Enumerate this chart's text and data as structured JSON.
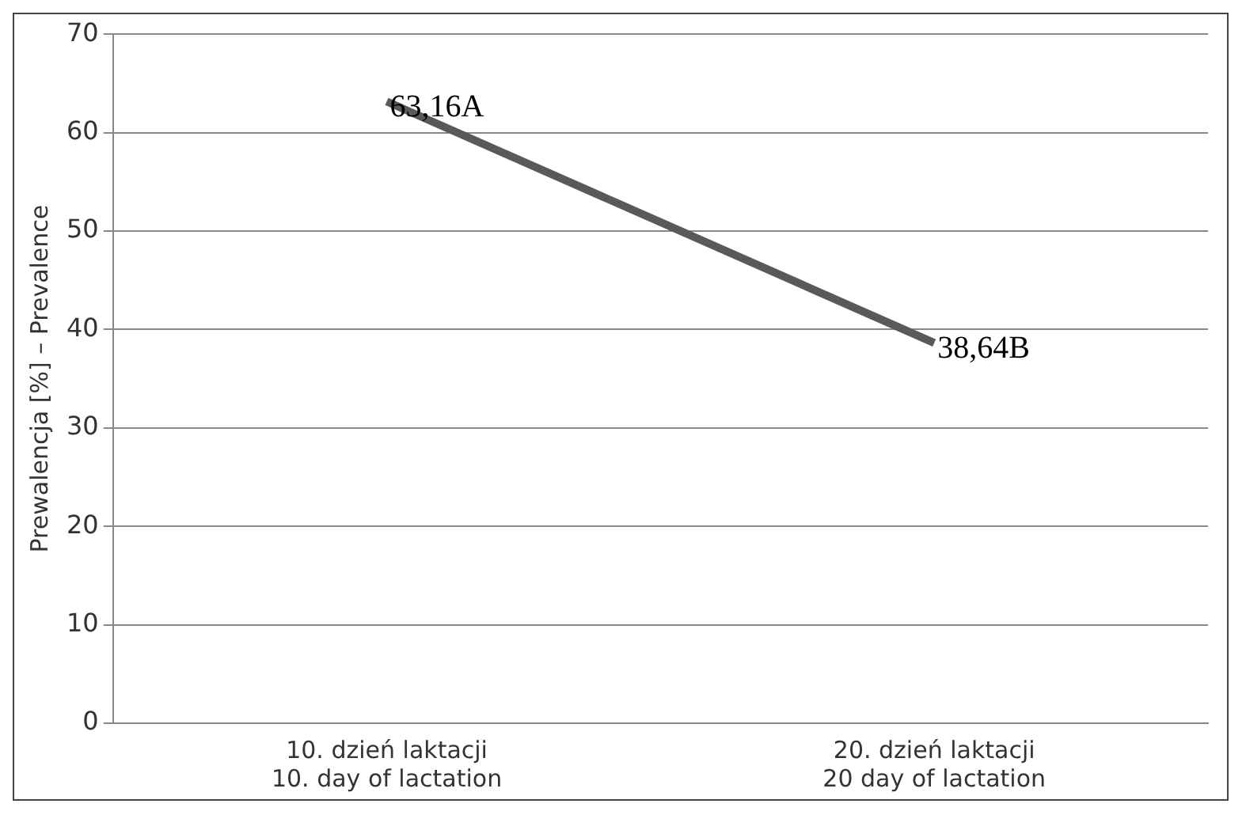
{
  "chart_data": {
    "type": "line",
    "categories": [
      "10. dzień laktacji\n10. day of lactation",
      "20. dzień laktacji\n20 day of lactation"
    ],
    "series": [
      {
        "color": "#595959",
        "values": [
          63.16,
          38.64
        ],
        "value_labels": [
          "63,16A",
          "38,64B"
        ]
      }
    ],
    "ylabel": "Prewalencja [%] – Prevalence",
    "ylim": [
      0,
      70
    ],
    "yticks": [
      0,
      10,
      20,
      30,
      40,
      50,
      60,
      70
    ],
    "grid": "y",
    "legend": false,
    "marker": "none",
    "line_style": "solid"
  }
}
